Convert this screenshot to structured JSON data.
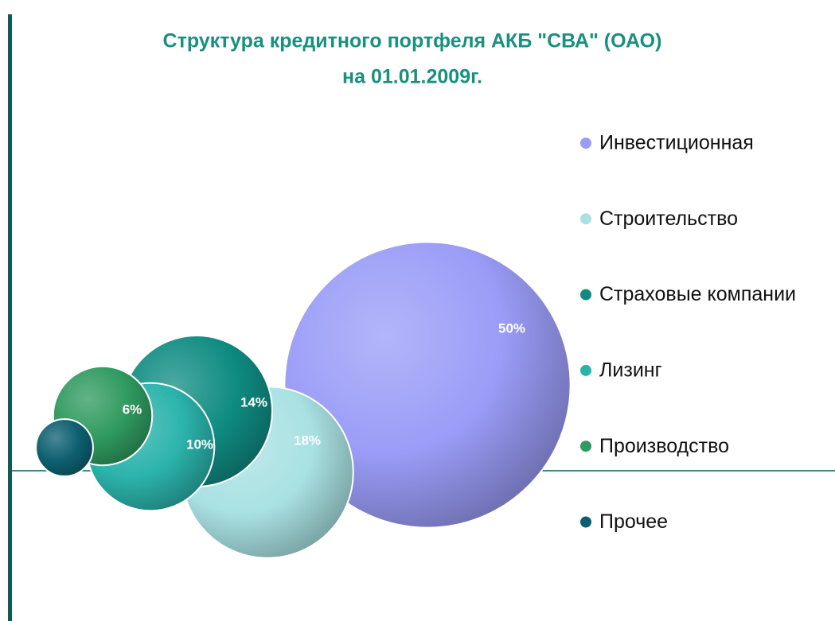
{
  "chart_data": {
    "type": "bubble",
    "title": [
      "Структура кредитного портфеля АКБ \"СВА\" (ОАО)",
      "на 01.01.2009г."
    ],
    "series": [
      {
        "name": "Инвестиционная",
        "color": "#9a9cf7",
        "values": [
          50
        ],
        "value_labels": [
          "50%"
        ]
      },
      {
        "name": "Строительство",
        "color": "#a9e1e3",
        "values": [
          18
        ],
        "value_labels": [
          "18%"
        ]
      },
      {
        "name": "Страховые компании",
        "color": "#0f8c82",
        "values": [
          14
        ],
        "value_labels": [
          "14%"
        ]
      },
      {
        "name": "Лизинг",
        "color": "#2bb3ab",
        "values": [
          10
        ],
        "value_labels": [
          "10%"
        ]
      },
      {
        "name": "Производство",
        "color": "#2f9a5f",
        "values": [
          6
        ],
        "value_labels": [
          "6%"
        ]
      },
      {
        "name": "Прочее",
        "color": "#0d5f70",
        "values": [
          2
        ],
        "value_labels": [
          null
        ]
      }
    ],
    "legend": "right"
  }
}
